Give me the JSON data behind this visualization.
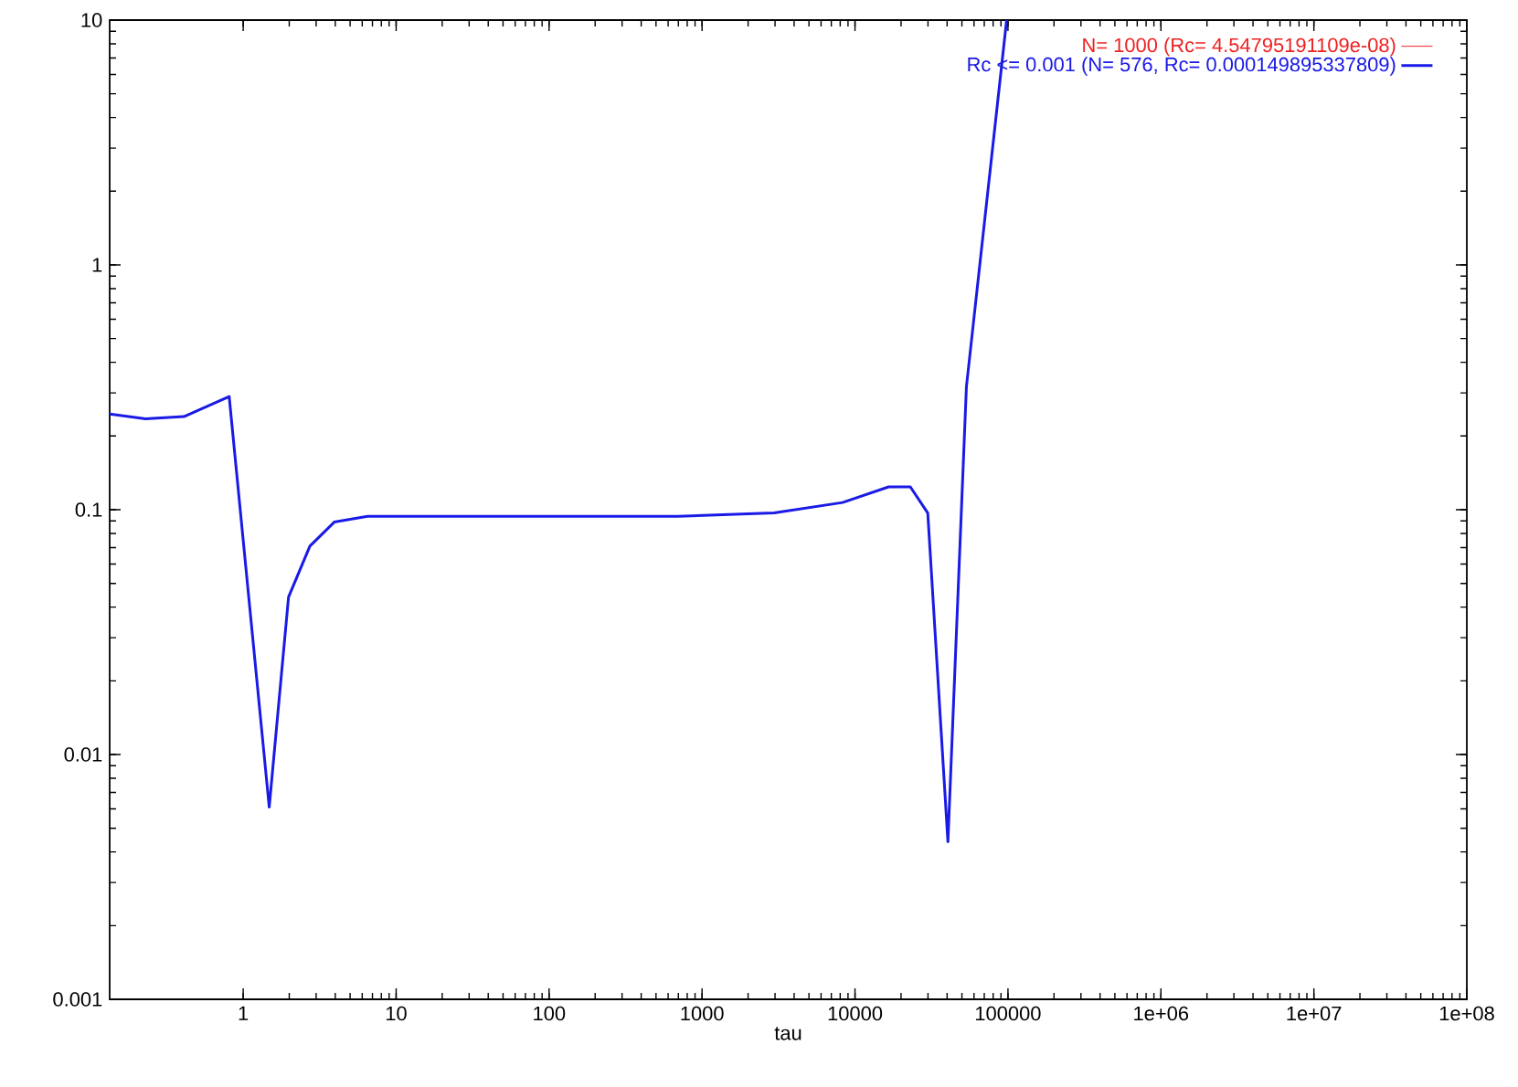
{
  "chart_data": {
    "type": "line",
    "xlabel": "tau",
    "log": "xy",
    "legend": "top right",
    "grid": false,
    "marker": "none",
    "line_style": "solid",
    "xlim": [
      0.134,
      100000000
    ],
    "ylim": [
      0.001,
      10
    ],
    "xticks": [
      1,
      10,
      100,
      1000,
      10000,
      100000,
      {
        "value": 1000000,
        "label": "1e+06"
      },
      {
        "value": 10000000,
        "label": "1e+07"
      },
      {
        "value": 100000000,
        "label": "1e+08"
      }
    ],
    "yticks": [
      0.001,
      0.01,
      0.1,
      1,
      10
    ],
    "series": [
      {
        "name": "N= 1000 (Rc= 4.54795191109e-08)",
        "color": "#ee2222"
      },
      {
        "name": "Rc <= 0.001 (N= 576, Rc= 0.000149895337809)",
        "color": "#1a1ae6",
        "x": [
          0.134,
          0.23,
          0.41,
          0.81,
          1.48,
          1.98,
          2.73,
          3.94,
          6.5,
          692,
          2960,
          8300,
          16600,
          23000,
          29900,
          40500,
          53500,
          98000
        ],
        "values": [
          0.246,
          0.235,
          0.24,
          0.29,
          0.0061,
          0.044,
          0.071,
          0.089,
          0.094,
          0.094,
          0.097,
          0.107,
          0.124,
          0.124,
          0.097,
          0.0044,
          0.318,
          10
        ]
      }
    ]
  }
}
